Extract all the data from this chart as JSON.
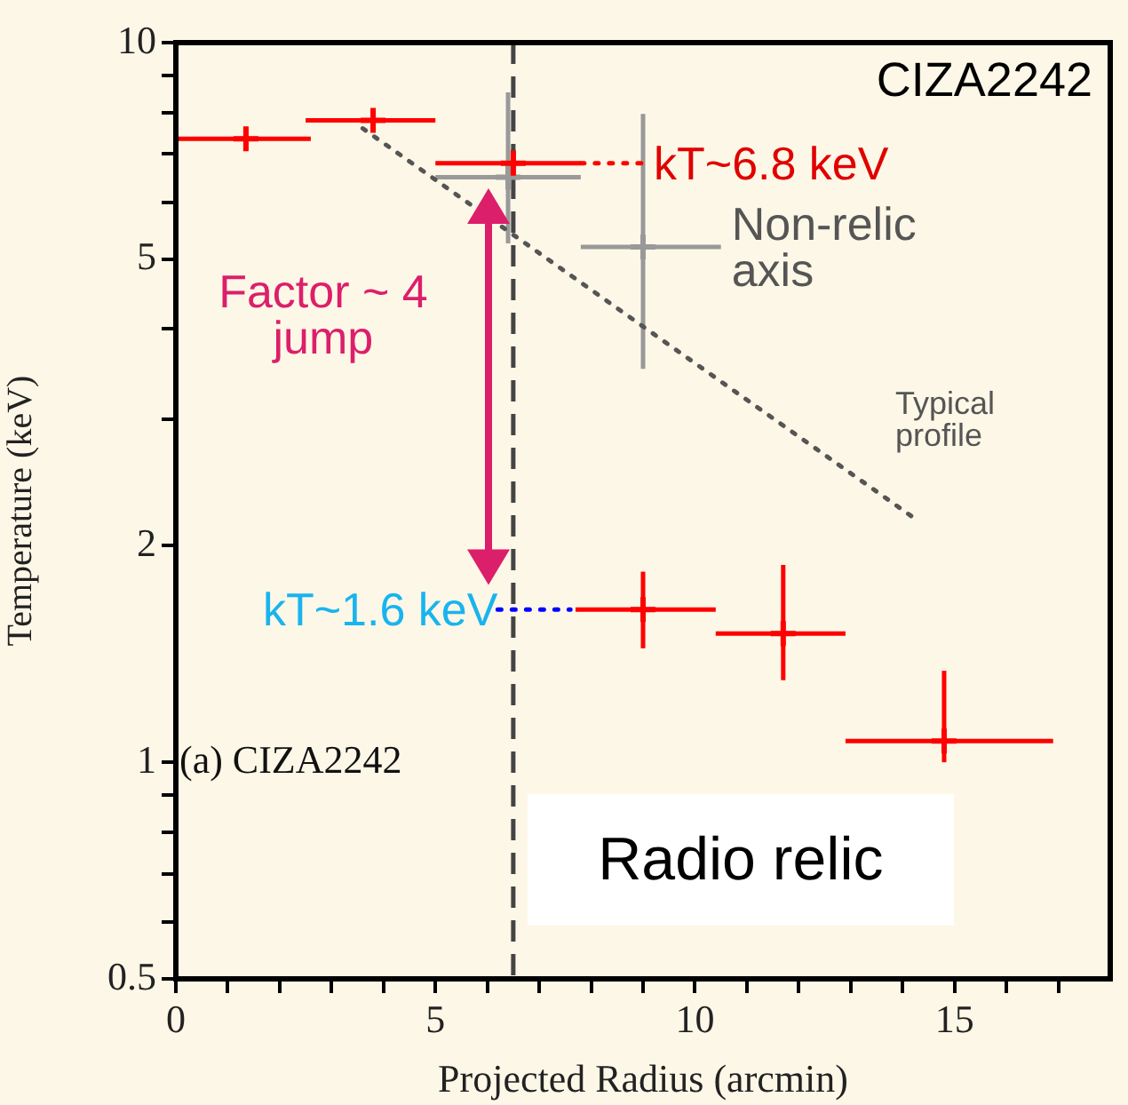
{
  "chart_data": {
    "type": "scatter",
    "xlabel": "Projected Radius (arcmin)",
    "ylabel": "Temperature (keV)",
    "xlim": [
      0,
      18
    ],
    "ylim": [
      0.5,
      10
    ],
    "log": "y",
    "grid": false,
    "legend": false,
    "xticks": [
      0,
      {
        "value": 1,
        "label": null
      },
      {
        "value": 2,
        "label": null
      },
      {
        "value": 3,
        "label": null
      },
      {
        "value": 4,
        "label": null
      },
      5,
      {
        "value": 6,
        "label": null
      },
      {
        "value": 7,
        "label": null
      },
      {
        "value": 8,
        "label": null
      },
      {
        "value": 9,
        "label": null
      },
      10,
      {
        "value": 11,
        "label": null
      },
      {
        "value": 12,
        "label": null
      },
      {
        "value": 13,
        "label": null
      },
      {
        "value": 14,
        "label": null
      },
      15,
      {
        "value": 16,
        "label": null
      },
      {
        "value": 17,
        "label": null
      }
    ],
    "yticks": [
      0.5,
      {
        "value": 0.6,
        "label": null
      },
      {
        "value": 0.7,
        "label": null
      },
      {
        "value": 0.8,
        "label": null
      },
      {
        "value": 0.9,
        "label": null
      },
      1,
      2,
      {
        "value": 3,
        "label": null
      },
      {
        "value": 4,
        "label": null
      },
      5,
      {
        "value": 6,
        "label": null
      },
      {
        "value": 7,
        "label": null
      },
      {
        "value": 8,
        "label": null
      },
      {
        "value": 9,
        "label": null
      },
      10
    ],
    "series": [
      {
        "type": "scatter",
        "color": "#ff0000",
        "marker": "cross",
        "x": [
          1.35,
          3.8,
          6.5,
          9.0,
          11.7,
          14.8
        ],
        "values": [
          7.35,
          7.8,
          6.8,
          1.63,
          1.51,
          1.07
        ],
        "errors": [
          [
            7.1,
            7.6
          ],
          [
            7.55,
            8.05
          ],
          [
            6.5,
            7.1
          ],
          [
            1.44,
            1.84
          ],
          [
            1.3,
            1.88
          ],
          [
            1.0,
            1.34
          ]
        ],
        "xerrors": [
          [
            0,
            2.6
          ],
          [
            2.5,
            5.0
          ],
          [
            5.0,
            7.8
          ],
          [
            7.7,
            10.4
          ],
          [
            10.4,
            12.9
          ],
          [
            12.9,
            16.9
          ]
        ]
      },
      {
        "type": "scatter",
        "color": "#999999",
        "marker": "cross",
        "x": [
          6.4,
          9.0
        ],
        "values": [
          6.5,
          5.2
        ],
        "errors": [
          [
            5.26,
            8.53
          ],
          [
            3.52,
            7.96
          ]
        ],
        "xerrors": [
          [
            5.0,
            7.8
          ],
          [
            7.8,
            10.5
          ]
        ]
      },
      {
        "type": "line",
        "color": "#555555",
        "line_style": "dotted",
        "x": [
          3.6,
          14.2
        ],
        "values": [
          7.6,
          2.19
        ]
      },
      {
        "type": "line",
        "color": "#ff0000",
        "line_style": "dotted",
        "x": [
          7.8,
          9.0
        ],
        "values": [
          6.8,
          6.8
        ]
      },
      {
        "type": "line",
        "color": "#0000ff",
        "line_style": "dotted",
        "x": [
          6.2,
          7.6
        ],
        "values": [
          1.63,
          1.63
        ]
      }
    ],
    "ref_lines": [
      {
        "axis": "x",
        "value": 6.5,
        "label": "Radio relic",
        "color": "#444444",
        "line_style": "dashed"
      }
    ],
    "annotations": [
      "CIZA2242",
      {
        "text": "kT~6.8 keV",
        "x": 9.0,
        "y": 6.8
      },
      {
        "text": "Non-relic axis",
        "x": 10.5,
        "y": 5.2
      },
      "Factor ~ 4 jump",
      {
        "text": "Typical profile",
        "x": 14.2,
        "y": 2.19
      },
      {
        "text": "kT~1.6 keV",
        "x": 6.2,
        "y": 1.63
      },
      "(a) CIZA2242"
    ]
  }
}
